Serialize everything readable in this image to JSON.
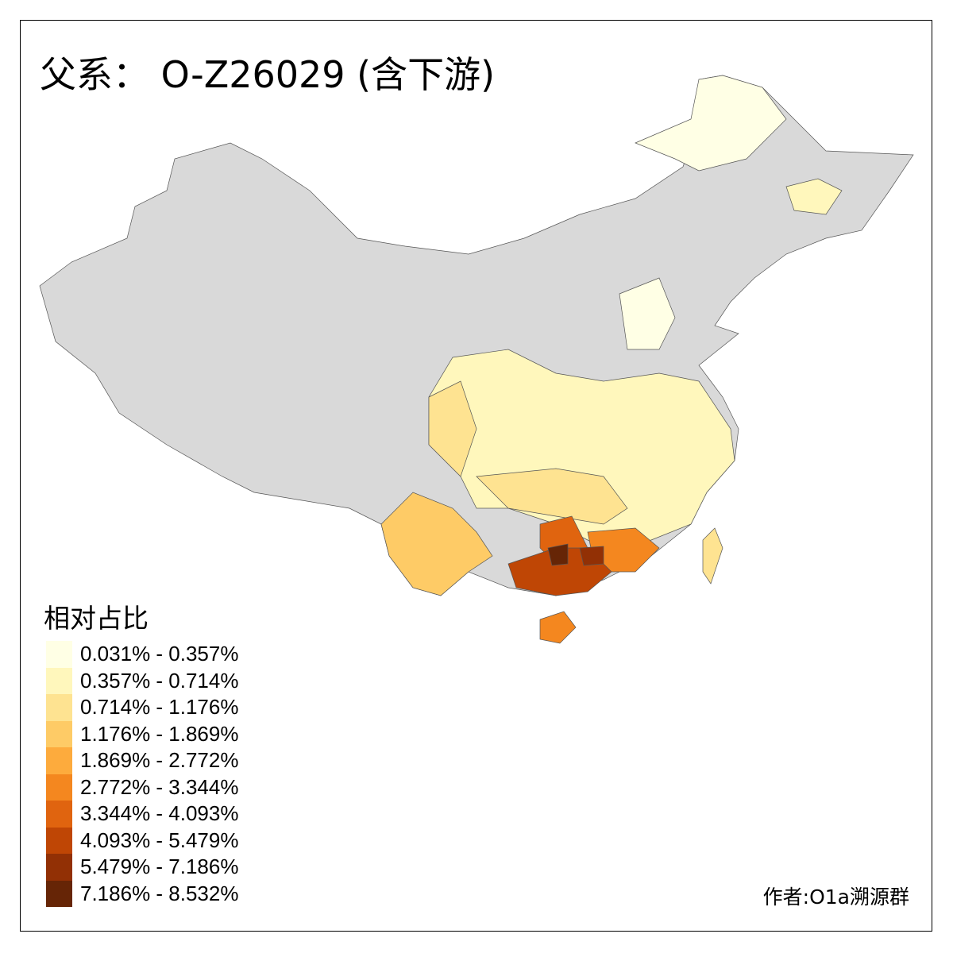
{
  "title": "父系： O-Z26029 (含下游)",
  "legend": {
    "title": "相对占比",
    "items": [
      {
        "label": "0.031% - 0.357%",
        "color": "#ffffe5"
      },
      {
        "label": "0.357% - 0.714%",
        "color": "#fff7bc"
      },
      {
        "label": "0.714% - 1.176%",
        "color": "#fee391"
      },
      {
        "label": "1.176% - 1.869%",
        "color": "#fecb66"
      },
      {
        "label": "1.869% - 2.772%",
        "color": "#fdab3d"
      },
      {
        "label": "2.772% - 3.344%",
        "color": "#f4871f"
      },
      {
        "label": "3.344% - 4.093%",
        "color": "#e0640f"
      },
      {
        "label": "4.093% - 5.479%",
        "color": "#bf4605"
      },
      {
        "label": "5.479% - 7.186%",
        "color": "#923005"
      },
      {
        "label": "7.186% - 8.532%",
        "color": "#662506"
      }
    ]
  },
  "no_data_color": "#d9d9d9",
  "author": "作者:O1a溯源群"
}
